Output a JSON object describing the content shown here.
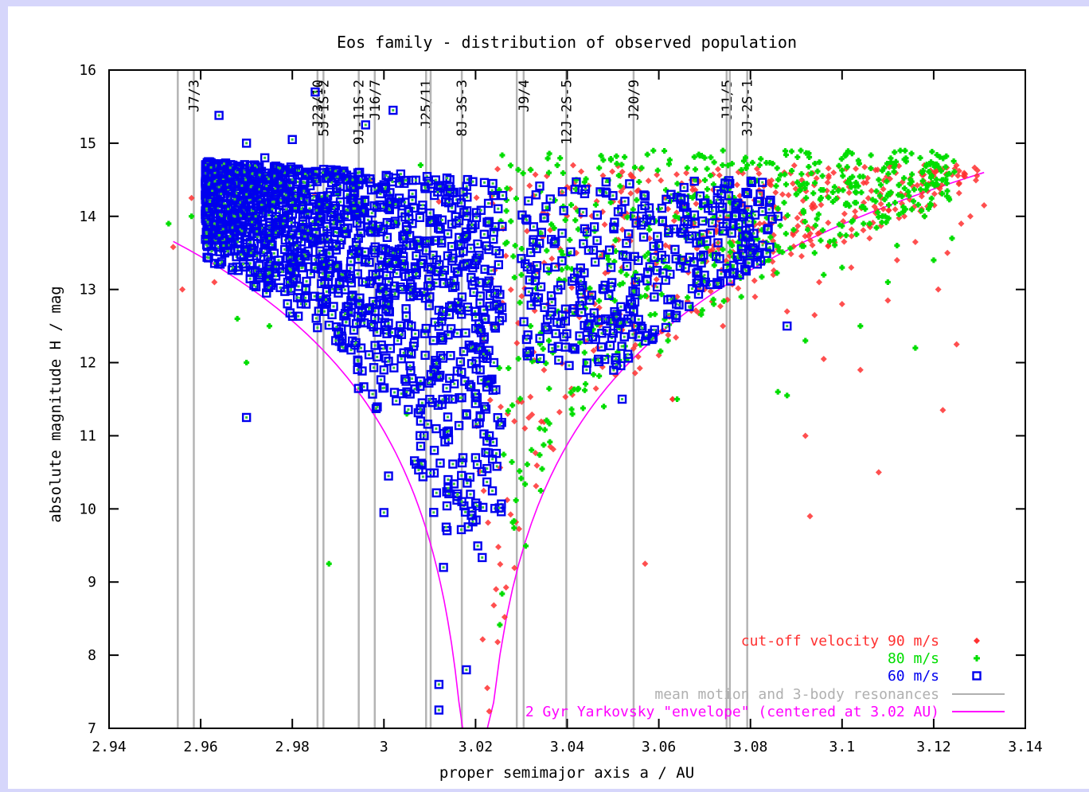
{
  "chart_data": {
    "type": "scatter",
    "title": "Eos family - distribution of observed population",
    "xlabel": "proper semimajor axis a / AU",
    "ylabel": "absolute magnitude H / mag",
    "xlim": [
      2.94,
      3.14
    ],
    "ylim": [
      7,
      16
    ],
    "xticks": [
      "2.94",
      "2.96",
      "2.98",
      "3",
      "3.02",
      "3.04",
      "3.06",
      "3.08",
      "3.1",
      "3.12",
      "3.14"
    ],
    "yticks": [
      "7",
      "8",
      "9",
      "10",
      "11",
      "12",
      "13",
      "14",
      "15",
      "16"
    ],
    "resonances": [
      {
        "a": 2.955,
        "label": ""
      },
      {
        "a": 2.9585,
        "label": "J7/3"
      },
      {
        "a": 2.9855,
        "label": "J23/10"
      },
      {
        "a": 2.9868,
        "label": "5J-1S-2"
      },
      {
        "a": 2.9945,
        "label": "9J-11S-2"
      },
      {
        "a": 2.998,
        "label": "J16/7"
      },
      {
        "a": 3.0092,
        "label": "J25/11"
      },
      {
        "a": 3.0102,
        "label": ""
      },
      {
        "a": 3.017,
        "label": "8J-3S-3"
      },
      {
        "a": 3.029,
        "label": ""
      },
      {
        "a": 3.0305,
        "label": "J9/4"
      },
      {
        "a": 3.0398,
        "label": "12J-2S-5"
      },
      {
        "a": 3.0545,
        "label": "J20/9"
      },
      {
        "a": 3.0748,
        "label": "J11/5"
      },
      {
        "a": 3.0755,
        "label": ""
      },
      {
        "a": 3.0793,
        "label": "3J-2S-1"
      }
    ],
    "envelope": {
      "center_a": 3.02,
      "H_at_2_96": 13.45,
      "H_at_3_13": 14.58
    },
    "legend": {
      "placement": "bottom-right",
      "entries": [
        {
          "label": "cut-off velocity 90 m/s",
          "color": "#ff3030",
          "marker": "diamond"
        },
        {
          "label": "80 m/s",
          "color": "#00dd00",
          "marker": "plus"
        },
        {
          "label": "60 m/s",
          "color": "#0000ee",
          "marker": "square"
        },
        {
          "label": "mean motion and 3-body resonances",
          "color": "#b0b0b0",
          "marker": "line"
        },
        {
          "label": "2 Gyr Yarkovsky \"envelope\" (centered at 3.02 AU)",
          "color": "#ff00ff",
          "marker": "line"
        }
      ]
    },
    "series": [
      {
        "name": "90 m/s",
        "color": "#ff3030",
        "points": [
          [
            2.954,
            13.58
          ],
          [
            2.956,
            13.0
          ],
          [
            2.958,
            14.25
          ],
          [
            2.963,
            13.1
          ],
          [
            2.975,
            14.6
          ],
          [
            2.985,
            14.3
          ],
          [
            2.997,
            14.5
          ],
          [
            3.004,
            14.45
          ],
          [
            3.012,
            14.2
          ],
          [
            3.027,
            11.3
          ],
          [
            3.04,
            14.4
          ],
          [
            3.042,
            13.5
          ],
          [
            3.046,
            12.8
          ],
          [
            3.05,
            14.2
          ],
          [
            3.052,
            13.3
          ],
          [
            3.054,
            14.55
          ],
          [
            3.055,
            12.4
          ],
          [
            3.058,
            13.7
          ],
          [
            3.06,
            12.1
          ],
          [
            3.062,
            14.1
          ],
          [
            3.063,
            11.5
          ],
          [
            3.064,
            12.9
          ],
          [
            3.066,
            13.8
          ],
          [
            3.068,
            14.3
          ],
          [
            3.07,
            13.0
          ],
          [
            3.072,
            13.6
          ],
          [
            3.074,
            12.5
          ],
          [
            3.078,
            13.5
          ],
          [
            3.079,
            14.35
          ],
          [
            3.081,
            12.9
          ],
          [
            3.083,
            13.9
          ],
          [
            3.085,
            13.2
          ],
          [
            3.087,
            14.3
          ],
          [
            3.088,
            12.7
          ],
          [
            3.09,
            13.8
          ],
          [
            3.091,
            14.4
          ],
          [
            3.092,
            11.0
          ],
          [
            3.093,
            9.9
          ],
          [
            3.095,
            13.1
          ],
          [
            3.096,
            12.05
          ],
          [
            3.097,
            13.6
          ],
          [
            3.099,
            14.25
          ],
          [
            3.1,
            12.8
          ],
          [
            3.102,
            13.3
          ],
          [
            3.103,
            14.65
          ],
          [
            3.104,
            11.9
          ],
          [
            3.106,
            13.7
          ],
          [
            3.108,
            10.5
          ],
          [
            3.109,
            14.1
          ],
          [
            3.11,
            12.85
          ],
          [
            3.112,
            13.4
          ],
          [
            3.114,
            14.3
          ],
          [
            3.116,
            13.65
          ],
          [
            3.118,
            14.0
          ],
          [
            3.12,
            14.55
          ],
          [
            3.121,
            13.0
          ],
          [
            3.122,
            11.35
          ],
          [
            3.123,
            13.5
          ],
          [
            3.125,
            12.25
          ],
          [
            3.126,
            13.9
          ],
          [
            3.128,
            14.0
          ],
          [
            3.131,
            14.15
          ],
          [
            3.057,
            9.25
          ],
          [
            3.063,
            11.5
          ],
          [
            3.068,
            13.2
          ],
          [
            3.065,
            14.45
          ],
          [
            3.047,
            12.75
          ],
          [
            3.059,
            13.05
          ],
          [
            3.086,
            13.55
          ],
          [
            3.073,
            13.95
          ],
          [
            3.094,
            12.65
          ]
        ]
      },
      {
        "name": "80 m/s",
        "color": "#00dd00",
        "points": [
          [
            2.953,
            13.9
          ],
          [
            2.958,
            14.0
          ],
          [
            2.965,
            14.7
          ],
          [
            2.968,
            12.6
          ],
          [
            2.97,
            12.0
          ],
          [
            2.972,
            14.3
          ],
          [
            2.975,
            12.5
          ],
          [
            2.988,
            9.25
          ],
          [
            2.99,
            14.3
          ],
          [
            2.992,
            14.5
          ],
          [
            3.003,
            13.9
          ],
          [
            3.005,
            11.3
          ],
          [
            3.008,
            14.7
          ],
          [
            3.03,
            13.2
          ],
          [
            3.032,
            12.5
          ],
          [
            3.034,
            11.1
          ],
          [
            3.036,
            12.3
          ],
          [
            3.038,
            12.7
          ],
          [
            3.04,
            13.3
          ],
          [
            3.042,
            14.5
          ],
          [
            3.044,
            12.0
          ],
          [
            3.046,
            13.8
          ],
          [
            3.048,
            11.4
          ],
          [
            3.05,
            12.6
          ],
          [
            3.052,
            13.5
          ],
          [
            3.054,
            14.0
          ],
          [
            3.056,
            12.9
          ],
          [
            3.058,
            13.4
          ],
          [
            3.06,
            14.1
          ],
          [
            3.062,
            12.3
          ],
          [
            3.064,
            11.5
          ],
          [
            3.066,
            13.7
          ],
          [
            3.068,
            14.5
          ],
          [
            3.07,
            14.8
          ],
          [
            3.072,
            12.8
          ],
          [
            3.074,
            14.9
          ],
          [
            3.076,
            13.6
          ],
          [
            3.078,
            12.9
          ],
          [
            3.08,
            14.0
          ],
          [
            3.082,
            14.7
          ],
          [
            3.084,
            13.4
          ],
          [
            3.086,
            11.6
          ],
          [
            3.088,
            11.55
          ],
          [
            3.09,
            14.3
          ],
          [
            3.091,
            14.9
          ],
          [
            3.092,
            12.3
          ],
          [
            3.094,
            13.5
          ],
          [
            3.096,
            13.2
          ],
          [
            3.098,
            14.2
          ],
          [
            3.1,
            13.3
          ],
          [
            3.102,
            14.4
          ],
          [
            3.104,
            12.5
          ],
          [
            3.106,
            13.9
          ],
          [
            3.108,
            14.5
          ],
          [
            3.11,
            13.1
          ],
          [
            3.112,
            13.6
          ],
          [
            3.114,
            14.75
          ],
          [
            3.116,
            12.2
          ],
          [
            3.118,
            14.0
          ],
          [
            3.12,
            13.4
          ],
          [
            3.122,
            14.5
          ],
          [
            3.124,
            13.7
          ]
        ]
      },
      {
        "name": "60 m/s",
        "color": "#0000ee",
        "points": [
          [
            2.962,
            14.2
          ],
          [
            2.963,
            13.9
          ],
          [
            2.964,
            14.4
          ],
          [
            2.965,
            13.6
          ],
          [
            2.966,
            14.1
          ],
          [
            2.967,
            13.3
          ],
          [
            2.968,
            14.6
          ],
          [
            2.969,
            13.8
          ],
          [
            2.97,
            14.3
          ],
          [
            2.971,
            13.5
          ],
          [
            2.972,
            14.0
          ],
          [
            2.973,
            13.2
          ],
          [
            2.974,
            14.8
          ],
          [
            2.975,
            13.7
          ],
          [
            2.976,
            14.2
          ],
          [
            2.977,
            13.4
          ],
          [
            2.978,
            13.9
          ],
          [
            2.979,
            13.1
          ],
          [
            2.98,
            14.5
          ],
          [
            2.981,
            13.6
          ],
          [
            2.982,
            14.1
          ],
          [
            2.983,
            12.8
          ],
          [
            2.984,
            13.7
          ],
          [
            2.985,
            13.3
          ],
          [
            2.986,
            14.0
          ],
          [
            2.987,
            12.7
          ],
          [
            2.988,
            13.5
          ],
          [
            2.989,
            13.9
          ],
          [
            2.99,
            12.4
          ],
          [
            2.991,
            13.2
          ],
          [
            2.992,
            14.3
          ],
          [
            2.993,
            12.9
          ],
          [
            2.994,
            13.6
          ],
          [
            2.995,
            12.2
          ],
          [
            2.996,
            13.1
          ],
          [
            2.997,
            13.8
          ],
          [
            2.998,
            12.6
          ],
          [
            2.999,
            13.3
          ],
          [
            3.0,
            11.9
          ],
          [
            3.001,
            12.8
          ],
          [
            3.002,
            13.5
          ],
          [
            3.003,
            12.3
          ],
          [
            3.004,
            13.0
          ],
          [
            3.005,
            11.6
          ],
          [
            3.006,
            12.5
          ],
          [
            3.007,
            13.2
          ],
          [
            3.008,
            11.2
          ],
          [
            3.009,
            12.1
          ],
          [
            3.01,
            12.9
          ],
          [
            3.011,
            10.8
          ],
          [
            3.012,
            11.8
          ],
          [
            3.013,
            12.7
          ],
          [
            3.014,
            10.4
          ],
          [
            3.015,
            11.5
          ],
          [
            3.016,
            12.4
          ],
          [
            3.017,
            10.1
          ],
          [
            3.018,
            11.3
          ],
          [
            3.019,
            12.2
          ],
          [
            3.02,
            10.7
          ],
          [
            3.021,
            11.9
          ],
          [
            3.022,
            12.6
          ],
          [
            3.023,
            11.0
          ],
          [
            3.024,
            12.0
          ],
          [
            2.964,
            15.38
          ],
          [
            2.97,
            15.0
          ],
          [
            2.98,
            15.05
          ],
          [
            2.985,
            15.7
          ],
          [
            2.996,
            15.25
          ],
          [
            3.002,
            15.45
          ],
          [
            2.97,
            11.25
          ],
          [
            3.001,
            10.45
          ],
          [
            3.0,
            9.95
          ],
          [
            3.013,
            9.2
          ],
          [
            3.018,
            7.8
          ],
          [
            3.012,
            7.6
          ],
          [
            3.012,
            7.25
          ],
          [
            3.048,
            13.0
          ],
          [
            3.055,
            12.5
          ],
          [
            3.06,
            13.6
          ],
          [
            3.065,
            13.4
          ],
          [
            3.07,
            13.1
          ],
          [
            3.074,
            13.8
          ],
          [
            3.08,
            13.5
          ],
          [
            3.082,
            14.2
          ],
          [
            3.086,
            14.0
          ],
          [
            3.088,
            12.5
          ],
          [
            3.052,
            11.5
          ]
        ]
      }
    ],
    "series_density": [
      {
        "name": "60 m/s",
        "count": 1800,
        "cloud": "a 2.962-3.026, H 10-15 along envelope"
      },
      {
        "name": "80 m/s",
        "count": 900,
        "cloud": "a 2.958-3.095, H 11-15"
      },
      {
        "name": "90 m/s",
        "count": 520,
        "cloud": "a 3.02-3.13, H 11-15"
      }
    ]
  }
}
